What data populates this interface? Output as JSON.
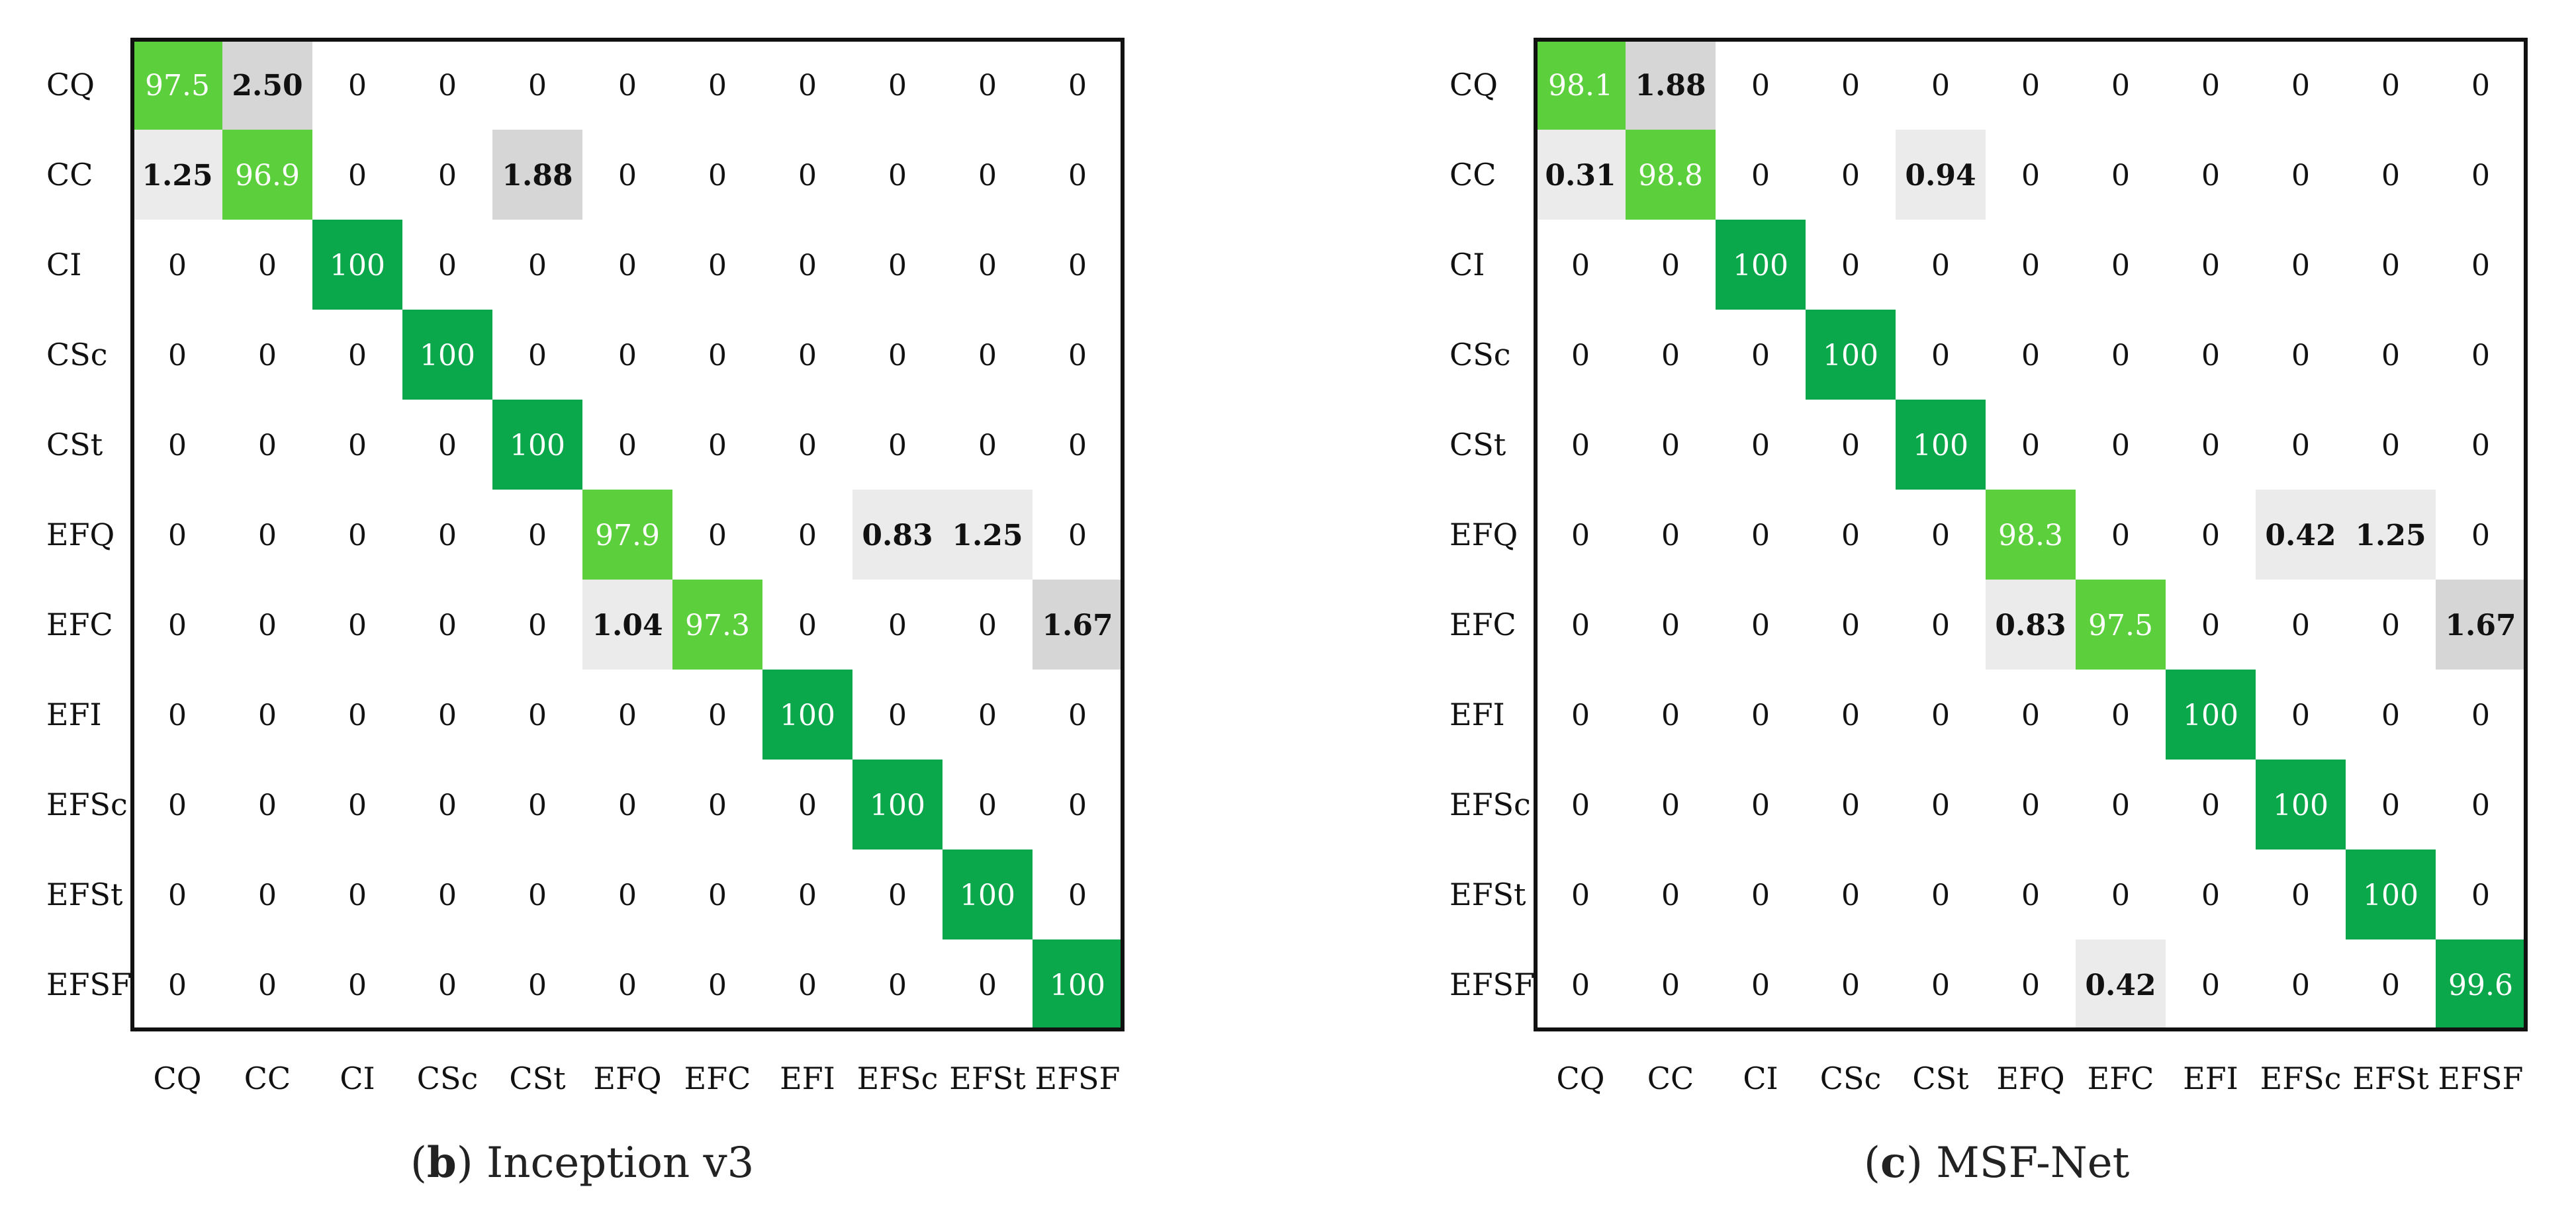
{
  "chart_data": [
    {
      "type": "heatmap",
      "title": "",
      "row_labels": [
        "CQ",
        "CC",
        "CI",
        "CSc",
        "CSt",
        "EFQ",
        "EFC",
        "EFI",
        "EFSc",
        "EFSt",
        "EFSF"
      ],
      "col_labels": [
        "CQ",
        "CC",
        "CI",
        "CSc",
        "CSt",
        "EFQ",
        "EFC",
        "EFI",
        "EFSc",
        "EFSt",
        "EFSF"
      ],
      "cell_text": [
        [
          "97.5",
          "2.50",
          "0",
          "0",
          "0",
          "0",
          "0",
          "0",
          "0",
          "0",
          "0"
        ],
        [
          "1.25",
          "96.9",
          "0",
          "0",
          "1.88",
          "0",
          "0",
          "0",
          "0",
          "0",
          "0"
        ],
        [
          "0",
          "0",
          "100",
          "0",
          "0",
          "0",
          "0",
          "0",
          "0",
          "0",
          "0"
        ],
        [
          "0",
          "0",
          "0",
          "100",
          "0",
          "0",
          "0",
          "0",
          "0",
          "0",
          "0"
        ],
        [
          "0",
          "0",
          "0",
          "0",
          "100",
          "0",
          "0",
          "0",
          "0",
          "0",
          "0"
        ],
        [
          "0",
          "0",
          "0",
          "0",
          "0",
          "97.9",
          "0",
          "0",
          "0.83",
          "1.25",
          "0"
        ],
        [
          "0",
          "0",
          "0",
          "0",
          "0",
          "1.04",
          "97.3",
          "0",
          "0",
          "0",
          "1.67"
        ],
        [
          "0",
          "0",
          "0",
          "0",
          "0",
          "0",
          "0",
          "100",
          "0",
          "0",
          "0"
        ],
        [
          "0",
          "0",
          "0",
          "0",
          "0",
          "0",
          "0",
          "0",
          "100",
          "0",
          "0"
        ],
        [
          "0",
          "0",
          "0",
          "0",
          "0",
          "0",
          "0",
          "0",
          "0",
          "100",
          "0"
        ],
        [
          "0",
          "0",
          "0",
          "0",
          "0",
          "0",
          "0",
          "0",
          "0",
          "0",
          "100"
        ]
      ],
      "values": [
        [
          97.5,
          2.5,
          0,
          0,
          0,
          0,
          0,
          0,
          0,
          0,
          0
        ],
        [
          1.25,
          96.9,
          0,
          0,
          1.88,
          0,
          0,
          0,
          0,
          0,
          0
        ],
        [
          0,
          0,
          100,
          0,
          0,
          0,
          0,
          0,
          0,
          0,
          0
        ],
        [
          0,
          0,
          0,
          100,
          0,
          0,
          0,
          0,
          0,
          0,
          0
        ],
        [
          0,
          0,
          0,
          0,
          100,
          0,
          0,
          0,
          0,
          0,
          0
        ],
        [
          0,
          0,
          0,
          0,
          0,
          97.9,
          0,
          0,
          0.83,
          1.25,
          0
        ],
        [
          0,
          0,
          0,
          0,
          0,
          1.04,
          97.3,
          0,
          0,
          0,
          1.67
        ],
        [
          0,
          0,
          0,
          0,
          0,
          0,
          0,
          100,
          0,
          0,
          0
        ],
        [
          0,
          0,
          0,
          0,
          0,
          0,
          0,
          0,
          100,
          0,
          0
        ],
        [
          0,
          0,
          0,
          0,
          0,
          0,
          0,
          0,
          0,
          100,
          0
        ],
        [
          0,
          0,
          0,
          0,
          0,
          0,
          0,
          0,
          0,
          0,
          100
        ]
      ],
      "caption_letter": "b",
      "caption_text": "Inception v3"
    },
    {
      "type": "heatmap",
      "title": "",
      "row_labels": [
        "CQ",
        "CC",
        "CI",
        "CSc",
        "CSt",
        "EFQ",
        "EFC",
        "EFI",
        "EFSc",
        "EFSt",
        "EFSF"
      ],
      "col_labels": [
        "CQ",
        "CC",
        "CI",
        "CSc",
        "CSt",
        "EFQ",
        "EFC",
        "EFI",
        "EFSc",
        "EFSt",
        "EFSF"
      ],
      "cell_text": [
        [
          "98.1",
          "1.88",
          "0",
          "0",
          "0",
          "0",
          "0",
          "0",
          "0",
          "0",
          "0"
        ],
        [
          "0.31",
          "98.8",
          "0",
          "0",
          "0.94",
          "0",
          "0",
          "0",
          "0",
          "0",
          "0"
        ],
        [
          "0",
          "0",
          "100",
          "0",
          "0",
          "0",
          "0",
          "0",
          "0",
          "0",
          "0"
        ],
        [
          "0",
          "0",
          "0",
          "100",
          "0",
          "0",
          "0",
          "0",
          "0",
          "0",
          "0"
        ],
        [
          "0",
          "0",
          "0",
          "0",
          "100",
          "0",
          "0",
          "0",
          "0",
          "0",
          "0"
        ],
        [
          "0",
          "0",
          "0",
          "0",
          "0",
          "98.3",
          "0",
          "0",
          "0.42",
          "1.25",
          "0"
        ],
        [
          "0",
          "0",
          "0",
          "0",
          "0",
          "0.83",
          "97.5",
          "0",
          "0",
          "0",
          "1.67"
        ],
        [
          "0",
          "0",
          "0",
          "0",
          "0",
          "0",
          "0",
          "100",
          "0",
          "0",
          "0"
        ],
        [
          "0",
          "0",
          "0",
          "0",
          "0",
          "0",
          "0",
          "0",
          "100",
          "0",
          "0"
        ],
        [
          "0",
          "0",
          "0",
          "0",
          "0",
          "0",
          "0",
          "0",
          "0",
          "100",
          "0"
        ],
        [
          "0",
          "0",
          "0",
          "0",
          "0",
          "0",
          "0.42",
          "0",
          "0",
          "0",
          "99.6"
        ]
      ],
      "values": [
        [
          98.1,
          1.88,
          0,
          0,
          0,
          0,
          0,
          0,
          0,
          0,
          0
        ],
        [
          0.31,
          98.8,
          0,
          0,
          0.94,
          0,
          0,
          0,
          0,
          0,
          0
        ],
        [
          0,
          0,
          100,
          0,
          0,
          0,
          0,
          0,
          0,
          0,
          0
        ],
        [
          0,
          0,
          0,
          100,
          0,
          0,
          0,
          0,
          0,
          0,
          0
        ],
        [
          0,
          0,
          0,
          0,
          100,
          0,
          0,
          0,
          0,
          0,
          0
        ],
        [
          0,
          0,
          0,
          0,
          0,
          98.3,
          0,
          0,
          0.42,
          1.25,
          0
        ],
        [
          0,
          0,
          0,
          0,
          0,
          0.83,
          97.5,
          0,
          0,
          0,
          1.67
        ],
        [
          0,
          0,
          0,
          0,
          0,
          0,
          0,
          100,
          0,
          0,
          0
        ],
        [
          0,
          0,
          0,
          0,
          0,
          0,
          0,
          0,
          100,
          0,
          0
        ],
        [
          0,
          0,
          0,
          0,
          0,
          0,
          0,
          0,
          0,
          100,
          0
        ],
        [
          0,
          0,
          0,
          0,
          0,
          0,
          0.42,
          0,
          0,
          0,
          99.6
        ]
      ],
      "caption_letter": "c",
      "caption_text": "MSF-Net"
    }
  ],
  "colors": {
    "high": "#0aa84a",
    "mid_high": "#5ccf3c",
    "low_gray": "#d6d6d6",
    "faint_gray": "#ebebeb",
    "border": "#111111"
  }
}
